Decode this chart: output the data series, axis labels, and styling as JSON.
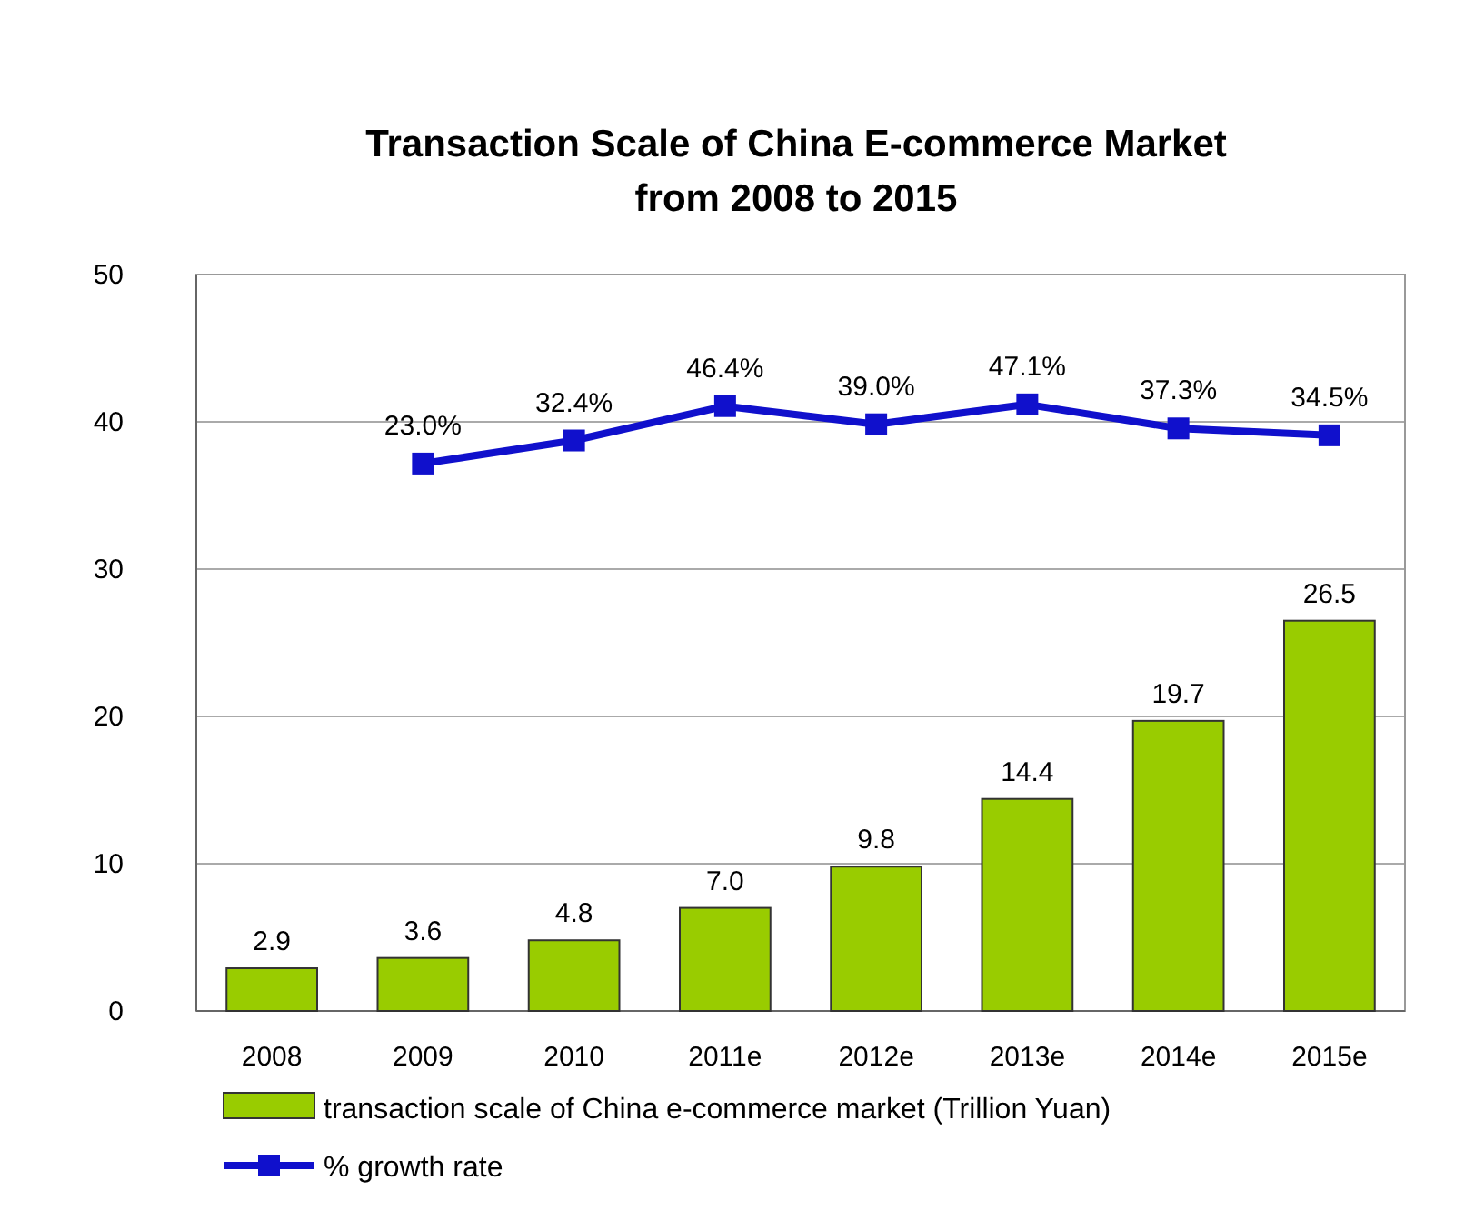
{
  "chart_data": {
    "type": "bar",
    "title": "Transaction Scale of China E-commerce Market\nfrom 2008 to 2015",
    "categories": [
      "2008",
      "2009",
      "2010",
      "2011e",
      "2012e",
      "2013e",
      "2014e",
      "2015e"
    ],
    "series": [
      {
        "name": "transaction scale of China e-commerce market (Trillion Yuan)",
        "color": "#99cc00",
        "values": [
          2.9,
          3.6,
          4.8,
          7.0,
          9.8,
          14.4,
          19.7,
          26.5
        ],
        "value_labels": [
          "2.9",
          "3.6",
          "4.8",
          "7.0",
          "9.8",
          "14.4",
          "19.7",
          "26.5"
        ]
      },
      {
        "name": "% growth rate",
        "type": "line",
        "axis": "y2",
        "color": "#1010cc",
        "values": [
          null,
          23.0,
          32.4,
          46.4,
          39.0,
          47.1,
          37.3,
          34.5
        ],
        "value_labels": [
          null,
          "23.0%",
          "32.4%",
          "46.4%",
          "39.0%",
          "47.1%",
          "37.3%",
          "34.5%"
        ]
      }
    ],
    "ylim": [
      0,
      50
    ],
    "yticks": [
      0,
      10,
      20,
      30,
      40,
      50
    ],
    "y2lim": [
      -200,
      100
    ],
    "grid": "y",
    "legend": "bottom",
    "marker": "square",
    "line_style": "solid"
  }
}
